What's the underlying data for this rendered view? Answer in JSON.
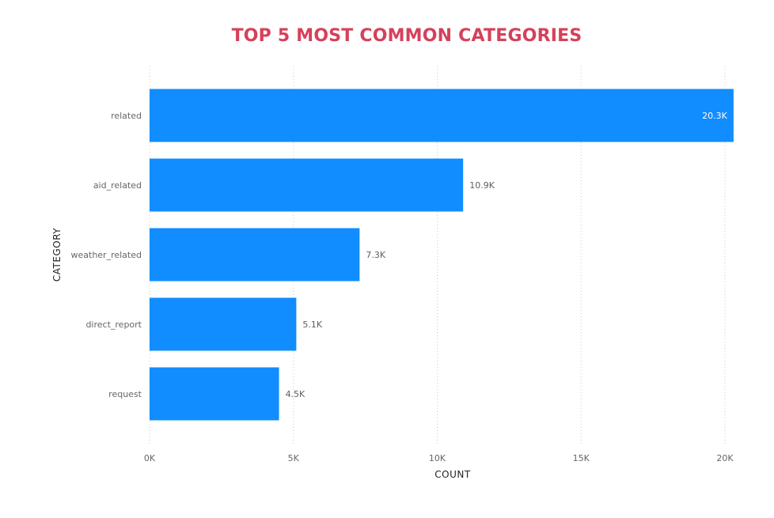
{
  "chart_data": {
    "type": "bar",
    "orientation": "horizontal",
    "title": "TOP 5 MOST COMMON CATEGORIES",
    "xlabel": "COUNT",
    "ylabel": "CATEGORY",
    "categories": [
      "related",
      "aid_related",
      "weather_related",
      "direct_report",
      "request"
    ],
    "values": [
      20300,
      10900,
      7300,
      5100,
      4500
    ],
    "data_labels": [
      "20.3K",
      "10.9K",
      "7.3K",
      "5.1K",
      "4.5K"
    ],
    "xlim": [
      0,
      20000
    ],
    "x_ticks": [
      0,
      5000,
      10000,
      15000,
      20000
    ],
    "x_tick_labels": [
      "0K",
      "5K",
      "10K",
      "15K",
      "20K"
    ],
    "grid": true,
    "legend": "none",
    "colors": {
      "bar": "#118dff",
      "title": "#d6405a",
      "label_inside": "#ffffff",
      "label_outside": "#605e5c"
    }
  }
}
